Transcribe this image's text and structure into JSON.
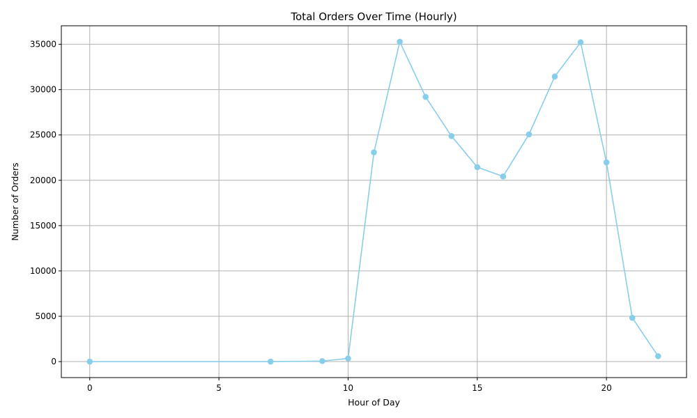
{
  "colors": {
    "series": "#87CEEB",
    "grid": "#b0b0b0",
    "background": "#ffffff"
  },
  "chart_data": {
    "type": "line",
    "title": "Total Orders Over Time (Hourly)",
    "xlabel": "Hour of Day",
    "ylabel": "Number of Orders",
    "xlim": [
      -1.1,
      23.1
    ],
    "ylim": [
      -1764,
      37044
    ],
    "grid": true,
    "marker": "circle",
    "x_ticks": [
      0,
      5,
      10,
      15,
      20
    ],
    "y_ticks": [
      0,
      5000,
      10000,
      15000,
      20000,
      25000,
      30000,
      35000
    ],
    "x_tick_labels": [
      "0",
      "5",
      "10",
      "15",
      "20"
    ],
    "y_tick_labels": [
      "0",
      "5000",
      "10000",
      "15000",
      "20000",
      "25000",
      "30000",
      "35000"
    ],
    "series": [
      {
        "x": [
          0,
          7,
          9,
          10,
          11,
          12,
          13,
          14,
          15,
          16,
          17,
          18,
          19,
          20,
          21,
          22
        ],
        "values": [
          0,
          0,
          60,
          350,
          23080,
          35280,
          29200,
          24880,
          21450,
          20420,
          25060,
          31450,
          35220,
          21980,
          4830,
          600
        ]
      }
    ]
  }
}
